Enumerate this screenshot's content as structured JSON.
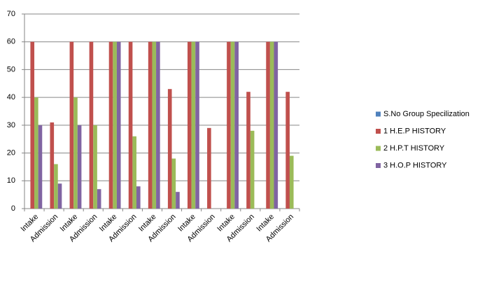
{
  "chart_data": {
    "type": "bar",
    "categories": [
      "Intake",
      "Admission",
      "Intake",
      "Admission",
      "Intake",
      "Admission",
      "Intake",
      "Admission",
      "Intake",
      "Admission",
      "Intake",
      "Admission",
      "Intake",
      "Admission"
    ],
    "series": [
      {
        "name": "S.No Group Specilization",
        "color": "#4f81bd",
        "values": [
          null,
          null,
          null,
          null,
          null,
          null,
          null,
          null,
          null,
          null,
          null,
          null,
          null,
          null
        ]
      },
      {
        "name": "1 H.E.P HISTORY",
        "color": "#c0504d",
        "values": [
          60,
          31,
          60,
          60,
          60,
          60,
          60,
          43,
          60,
          29,
          60,
          42,
          60,
          42
        ]
      },
      {
        "name": "2 H.P.T HISTORY",
        "color": "#9bbb59",
        "values": [
          40,
          16,
          40,
          30,
          60,
          26,
          60,
          18,
          60,
          null,
          60,
          28,
          60,
          19
        ]
      },
      {
        "name": "3 H.O.P HISTORY",
        "color": "#8064a2",
        "values": [
          30,
          9,
          30,
          7,
          60,
          8,
          60,
          6,
          60,
          null,
          60,
          null,
          60,
          null
        ]
      }
    ],
    "ylim": [
      0,
      70
    ],
    "yticks": [
      0,
      10,
      20,
      30,
      40,
      50,
      60,
      70
    ],
    "grid": true,
    "legend": "right"
  }
}
